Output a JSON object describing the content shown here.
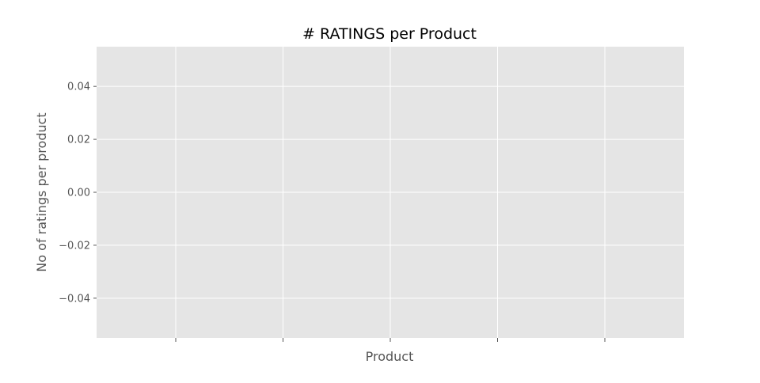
{
  "chart_data": {
    "type": "line",
    "title": "# RATINGS per Product",
    "xlabel": "Product",
    "ylabel": "No of ratings per product",
    "ylim": [
      -0.055,
      0.055
    ],
    "yticks": [
      0.04,
      0.02,
      0.0,
      -0.02,
      -0.04
    ],
    "ytick_labels": [
      "0.04",
      "0.02",
      "0.00",
      "−0.02",
      "−0.04"
    ],
    "xtick_count": 5,
    "xtick_labels": [
      "",
      "",
      "",
      "",
      ""
    ],
    "series": [],
    "grid": true,
    "style": "ggplot",
    "colors": {
      "plot_background": "#e5e5e5",
      "grid": "#ffffff",
      "tick": "#555555",
      "text": "#555555",
      "title": "#000000"
    }
  }
}
